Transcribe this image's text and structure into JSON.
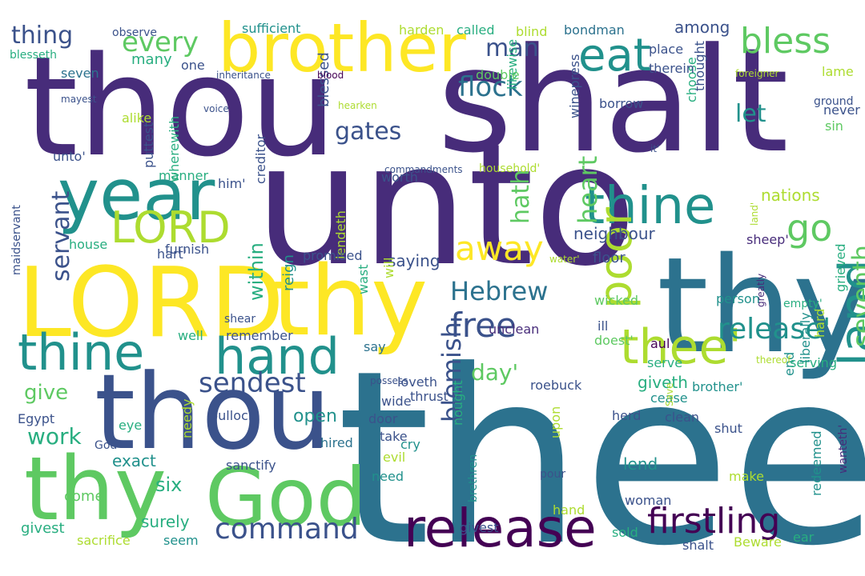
{
  "palette": {
    "background": "#ffffff",
    "c0": "#440154",
    "c1": "#472c7a",
    "c2": "#3b528b",
    "c3": "#2c728e",
    "c4": "#21918c",
    "c5": "#28ae80",
    "c6": "#5ec962",
    "c7": "#addc30",
    "c8": "#fde725"
  },
  "words": [
    "thee",
    "unto",
    "shalt",
    "thou",
    "thy",
    "thou",
    "LORD",
    "thy",
    "thy",
    "God",
    "year",
    "brother",
    "release",
    "thine",
    "hand",
    "thine",
    "land",
    "thee'",
    "poor",
    "eat",
    "LORD",
    "go",
    "bless",
    "firstling",
    "away",
    "free",
    "command",
    "release'",
    "sendest",
    "every",
    "flock",
    "Hebrew",
    "heart",
    "seventh",
    "blemish",
    "gates",
    "servant",
    "let",
    "hath",
    "thing",
    "man",
    "day'",
    "work",
    "give",
    "within",
    "six",
    "open",
    "neighbour",
    "exact",
    "saying",
    "among",
    "reign",
    "nations",
    "giveth",
    "sheep'",
    "lend",
    "surely",
    "floor",
    "givest",
    "blessed",
    "many",
    "come",
    "Egypt",
    "wicked",
    "roebuck",
    "clean",
    "thrust",
    "likewise",
    "house",
    "furnish",
    "harden",
    "called",
    "blind",
    "bondman",
    "thought",
    "borrow",
    "choose",
    "double",
    "wide",
    "worth",
    "sufficient",
    "seven",
    "bullock",
    "hired",
    "sanctify",
    "person",
    "empty'",
    "serve",
    "unclean",
    "doest'",
    "aul",
    "herd",
    "end",
    "serving",
    "shut",
    "grieved",
    "liberally",
    "remember",
    "say",
    "loveth",
    "cry",
    "take",
    "need",
    "evil",
    "pour",
    "woman",
    "sold",
    "make",
    "hand",
    "ear",
    "shalt",
    "Beware",
    "sacrifice",
    "seem",
    "givest",
    "brother'",
    "cease",
    "ill",
    "hard",
    "redeemed",
    "wanteth'",
    "brethren",
    "upon",
    "will",
    "nought",
    "wast",
    "lendeth",
    "promised",
    "door",
    "shear",
    "hart'",
    "him'",
    "unto'",
    "alike",
    "eye",
    "needy",
    "maidservant",
    "puttest",
    "manner",
    "wherewith",
    "creditor",
    "possess",
    "God'",
    "well",
    "sin",
    "never",
    "ground",
    "place",
    "therein",
    "one",
    "observe",
    "inheritance",
    "blood",
    "foreigner",
    "blesseth",
    "mayest",
    "voice",
    "hearken",
    "commandments",
    "household'",
    "winepress",
    "it'",
    "water'",
    "land'",
    "thereof",
    "greatly",
    "Save",
    "lame"
  ]
}
